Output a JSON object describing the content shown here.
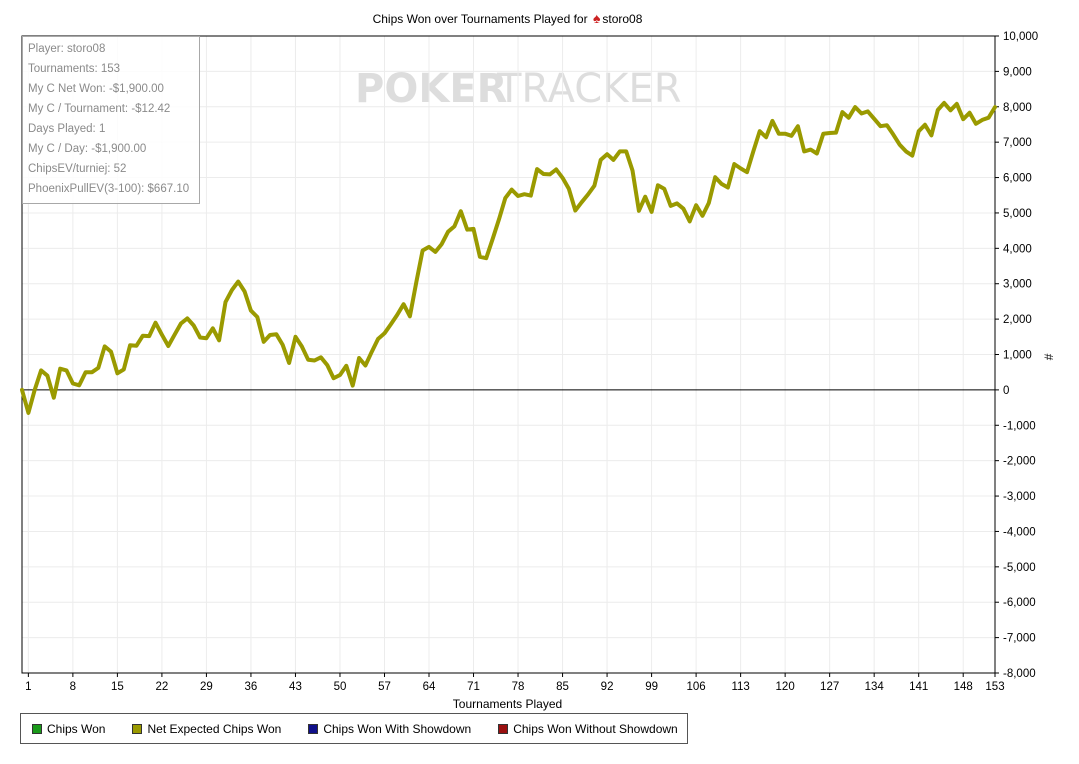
{
  "title_prefix": "Chips Won over Tournaments Played for",
  "title_player": "storo08",
  "stats": [
    "Player: storo08",
    "Tournaments: 153",
    "My C Net Won: -$1,900.00",
    "My C / Tournament: -$12.42",
    "Days Played: 1",
    "My C / Day: -$1,900.00",
    "ChipsEV/turniej: 52",
    "PhoenixPullEV(3-100): $667.10"
  ],
  "watermark": {
    "poker": "POKER",
    "tracker": "TRACKER"
  },
  "legend": [
    {
      "label": "Chips Won",
      "color": "#1a9a1a"
    },
    {
      "label": "Net Expected Chips Won",
      "color": "#9a9a00"
    },
    {
      "label": "Chips Won With Showdown",
      "color": "#10108a"
    },
    {
      "label": "Chips Won Without Showdown",
      "color": "#9a1010"
    }
  ],
  "chart_data": {
    "type": "line",
    "title": "Chips Won over Tournaments Played for storo08",
    "xlabel": "Tournaments Played",
    "ylabel": "#",
    "xlim": [
      0,
      153
    ],
    "ylim": [
      -8000,
      10000
    ],
    "x_ticks": [
      1,
      8,
      15,
      22,
      29,
      36,
      43,
      50,
      57,
      64,
      71,
      78,
      85,
      92,
      99,
      106,
      113,
      120,
      127,
      134,
      141,
      148,
      153
    ],
    "y_ticks": [
      10000,
      9000,
      8000,
      7000,
      6000,
      5000,
      4000,
      3000,
      2000,
      1000,
      0,
      -1000,
      -2000,
      -3000,
      -4000,
      -5000,
      -6000,
      -7000,
      -8000
    ],
    "y_tick_labels": [
      "10,000",
      "9,000",
      "8,000",
      "7,000",
      "6,000",
      "5,000",
      "4,000",
      "3,000",
      "2,000",
      "1,000",
      "0",
      "-1,000",
      "-2,000",
      "-3,000",
      "-4,000",
      "-5,000",
      "-6,000",
      "-7,000",
      "-8,000"
    ],
    "grid": true,
    "series": [
      {
        "name": "Net Expected Chips Won",
        "color": "#9a9a00",
        "points": [
          [
            0,
            0
          ],
          [
            1,
            -650
          ],
          [
            2,
            0
          ],
          [
            3,
            550
          ],
          [
            4,
            400
          ],
          [
            5,
            -220
          ],
          [
            6,
            600
          ],
          [
            7,
            550
          ],
          [
            8,
            180
          ],
          [
            9,
            130
          ],
          [
            10,
            500
          ],
          [
            11,
            500
          ],
          [
            12,
            620
          ],
          [
            13,
            1230
          ],
          [
            14,
            1080
          ],
          [
            15,
            470
          ],
          [
            16,
            580
          ],
          [
            17,
            1260
          ],
          [
            18,
            1250
          ],
          [
            19,
            1530
          ],
          [
            20,
            1520
          ],
          [
            21,
            1900
          ],
          [
            22,
            1560
          ],
          [
            23,
            1240
          ],
          [
            24,
            1560
          ],
          [
            25,
            1880
          ],
          [
            26,
            2020
          ],
          [
            27,
            1820
          ],
          [
            28,
            1480
          ],
          [
            29,
            1460
          ],
          [
            30,
            1740
          ],
          [
            31,
            1400
          ],
          [
            32,
            2480
          ],
          [
            33,
            2820
          ],
          [
            34,
            3060
          ],
          [
            35,
            2780
          ],
          [
            36,
            2240
          ],
          [
            37,
            2060
          ],
          [
            38,
            1360
          ],
          [
            39,
            1550
          ],
          [
            40,
            1570
          ],
          [
            41,
            1270
          ],
          [
            42,
            760
          ],
          [
            43,
            1500
          ],
          [
            44,
            1230
          ],
          [
            45,
            850
          ],
          [
            46,
            830
          ],
          [
            47,
            920
          ],
          [
            48,
            700
          ],
          [
            49,
            330
          ],
          [
            50,
            420
          ],
          [
            51,
            680
          ],
          [
            52,
            120
          ],
          [
            53,
            900
          ],
          [
            54,
            690
          ],
          [
            55,
            1080
          ],
          [
            56,
            1440
          ],
          [
            57,
            1600
          ],
          [
            58,
            1850
          ],
          [
            59,
            2120
          ],
          [
            60,
            2420
          ],
          [
            61,
            2080
          ],
          [
            62,
            3040
          ],
          [
            63,
            3940
          ],
          [
            64,
            4040
          ],
          [
            65,
            3900
          ],
          [
            66,
            4120
          ],
          [
            67,
            4470
          ],
          [
            68,
            4620
          ],
          [
            69,
            5050
          ],
          [
            70,
            4530
          ],
          [
            71,
            4550
          ],
          [
            72,
            3760
          ],
          [
            73,
            3720
          ],
          [
            74,
            4260
          ],
          [
            75,
            4820
          ],
          [
            76,
            5420
          ],
          [
            77,
            5660
          ],
          [
            78,
            5480
          ],
          [
            79,
            5530
          ],
          [
            80,
            5490
          ],
          [
            81,
            6240
          ],
          [
            82,
            6100
          ],
          [
            83,
            6090
          ],
          [
            84,
            6230
          ],
          [
            85,
            5990
          ],
          [
            86,
            5680
          ],
          [
            87,
            5070
          ],
          [
            88,
            5300
          ],
          [
            89,
            5520
          ],
          [
            90,
            5770
          ],
          [
            91,
            6500
          ],
          [
            92,
            6660
          ],
          [
            93,
            6500
          ],
          [
            94,
            6740
          ],
          [
            95,
            6740
          ],
          [
            96,
            6200
          ],
          [
            97,
            5060
          ],
          [
            98,
            5460
          ],
          [
            99,
            5030
          ],
          [
            100,
            5780
          ],
          [
            101,
            5680
          ],
          [
            102,
            5200
          ],
          [
            103,
            5270
          ],
          [
            104,
            5120
          ],
          [
            105,
            4760
          ],
          [
            106,
            5220
          ],
          [
            107,
            4920
          ],
          [
            108,
            5280
          ],
          [
            109,
            6010
          ],
          [
            110,
            5820
          ],
          [
            111,
            5720
          ],
          [
            112,
            6380
          ],
          [
            113,
            6260
          ],
          [
            114,
            6150
          ],
          [
            115,
            6740
          ],
          [
            116,
            7310
          ],
          [
            117,
            7140
          ],
          [
            118,
            7600
          ],
          [
            119,
            7240
          ],
          [
            120,
            7240
          ],
          [
            121,
            7180
          ],
          [
            122,
            7450
          ],
          [
            123,
            6740
          ],
          [
            124,
            6790
          ],
          [
            125,
            6680
          ],
          [
            126,
            7240
          ],
          [
            127,
            7260
          ],
          [
            128,
            7270
          ],
          [
            129,
            7850
          ],
          [
            130,
            7690
          ],
          [
            131,
            7990
          ],
          [
            132,
            7810
          ],
          [
            133,
            7870
          ],
          [
            134,
            7660
          ],
          [
            135,
            7450
          ],
          [
            136,
            7480
          ],
          [
            137,
            7220
          ],
          [
            138,
            6930
          ],
          [
            139,
            6740
          ],
          [
            140,
            6620
          ],
          [
            141,
            7310
          ],
          [
            142,
            7490
          ],
          [
            143,
            7190
          ],
          [
            144,
            7910
          ],
          [
            145,
            8110
          ],
          [
            146,
            7900
          ],
          [
            147,
            8080
          ],
          [
            148,
            7650
          ],
          [
            149,
            7830
          ],
          [
            150,
            7520
          ],
          [
            151,
            7630
          ],
          [
            152,
            7690
          ],
          [
            153,
            7990
          ]
        ]
      }
    ]
  }
}
